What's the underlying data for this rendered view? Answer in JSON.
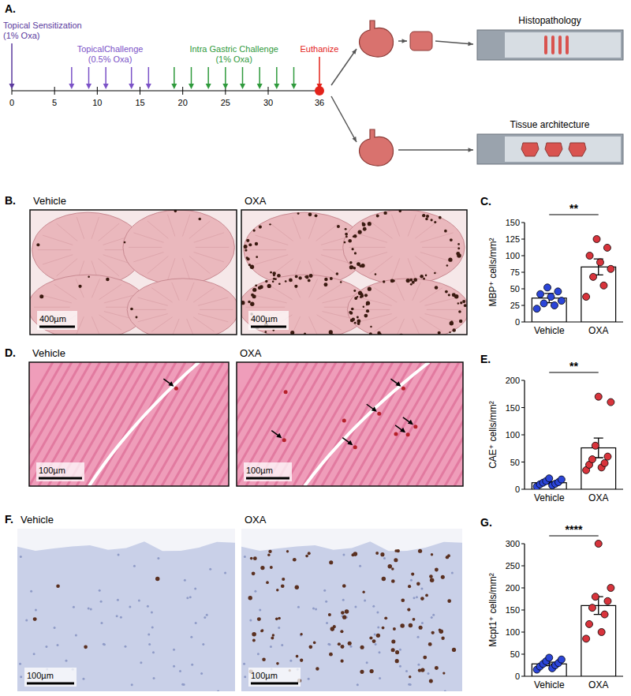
{
  "panel_a": {
    "letter": "A.",
    "timeline": {
      "range": [
        0,
        36
      ],
      "ticks": [
        0,
        5,
        10,
        15,
        20,
        25,
        30,
        36
      ],
      "events": [
        {
          "lines": [
            "Topical Sensitization",
            "(1% Oxa)"
          ],
          "color": "#5b3a9e",
          "days": [
            0
          ]
        },
        {
          "lines": [
            "TopicalChallenge",
            "(0.5% Oxa)"
          ],
          "color": "#7b52c7",
          "days": [
            7,
            9,
            11,
            14,
            16
          ]
        },
        {
          "lines": [
            "Intra Gastric Challenge",
            "(1% Oxa)"
          ],
          "color": "#2f9a3c",
          "days": [
            19,
            21,
            23,
            25,
            27,
            29,
            31,
            33
          ]
        },
        {
          "lines": [
            "Euthanize"
          ],
          "color": "#e3231b",
          "days": [
            36
          ]
        }
      ]
    },
    "outputs": [
      "Histopathology",
      "Tissue architecture"
    ]
  },
  "images": [
    {
      "letter": "B.",
      "labels": [
        "Vehicle",
        "OXA"
      ],
      "scale_bar": "400µm"
    },
    {
      "letter": "D.",
      "labels": [
        "Vehicle",
        "OXA"
      ],
      "scale_bar": "100µm"
    },
    {
      "letter": "F.",
      "labels": [
        "Vehicle",
        "OXA"
      ],
      "scale_bar": "100µm"
    }
  ],
  "chart_data": [
    {
      "type": "bar",
      "letter": "C.",
      "categories": [
        "Vehicle",
        "OXA"
      ],
      "values": [
        36,
        83
      ],
      "errors": [
        7,
        12
      ],
      "points": [
        [
          20,
          25,
          28,
          32,
          38,
          42,
          46,
          52
        ],
        [
          38,
          55,
          68,
          80,
          90,
          100,
          112,
          125
        ]
      ],
      "color": "#ffffff",
      "colors": [
        "#2b45d8",
        "#d8343c"
      ],
      "ylabel": "MBP⁺ cells/mm²",
      "ylim": [
        0,
        150
      ],
      "yticks": [
        0,
        25,
        50,
        75,
        100,
        125,
        150
      ],
      "significance": "**"
    },
    {
      "type": "bar",
      "letter": "E.",
      "categories": [
        "Vehicle",
        "OXA"
      ],
      "values": [
        12,
        76
      ],
      "errors": [
        2,
        18
      ],
      "points": [
        [
          5,
          7,
          9,
          10,
          12,
          13,
          15,
          18,
          20
        ],
        [
          35,
          40,
          45,
          48,
          55,
          60,
          80,
          160,
          170
        ]
      ],
      "color": "#ffffff",
      "colors": [
        "#2b45d8",
        "#d8343c"
      ],
      "ylabel": "CAE⁺ cells/mm²",
      "ylim": [
        0,
        200
      ],
      "yticks": [
        0,
        50,
        100,
        150,
        200
      ],
      "significance": "**"
    },
    {
      "type": "bar",
      "letter": "G.",
      "categories": [
        "Vehicle",
        "OXA"
      ],
      "values": [
        28,
        160
      ],
      "errors": [
        4,
        20
      ],
      "points": [
        [
          15,
          18,
          22,
          25,
          28,
          30,
          34,
          38,
          42
        ],
        [
          85,
          100,
          118,
          140,
          155,
          170,
          180,
          200,
          300
        ]
      ],
      "color": "#ffffff",
      "colors": [
        "#2b45d8",
        "#d8343c"
      ],
      "ylabel": "Mcpt1⁺ cells/mm²",
      "ylim": [
        0,
        300
      ],
      "yticks": [
        0,
        50,
        100,
        150,
        200,
        250,
        300
      ],
      "significance": "****"
    }
  ]
}
